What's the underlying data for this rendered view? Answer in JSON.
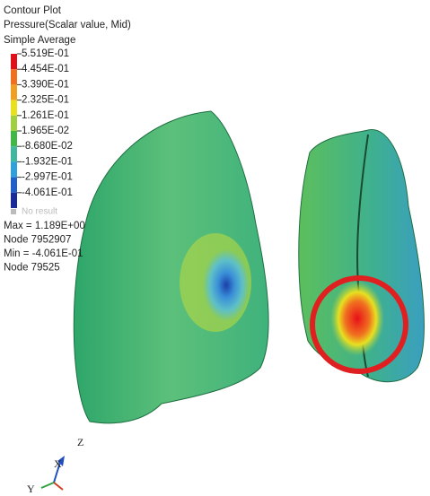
{
  "legend": {
    "title_lines": [
      "Contour Plot",
      "Pressure(Scalar value, Mid)",
      "Simple Average"
    ],
    "levels": [
      "5.519E-01",
      "4.454E-01",
      "3.390E-01",
      "2.325E-01",
      "1.261E-01",
      "1.965E-02",
      "-8.680E-02",
      "-1.932E-01",
      "-2.997E-01",
      "-4.061E-01"
    ],
    "no_result": "No result"
  },
  "stats": [
    "Max = 1.189E+00",
    "Node 7952907",
    "Min = -4.061E-01",
    "Node 79525"
  ],
  "triad": {
    "z": "Z",
    "x": "X",
    "y": "Y"
  }
}
